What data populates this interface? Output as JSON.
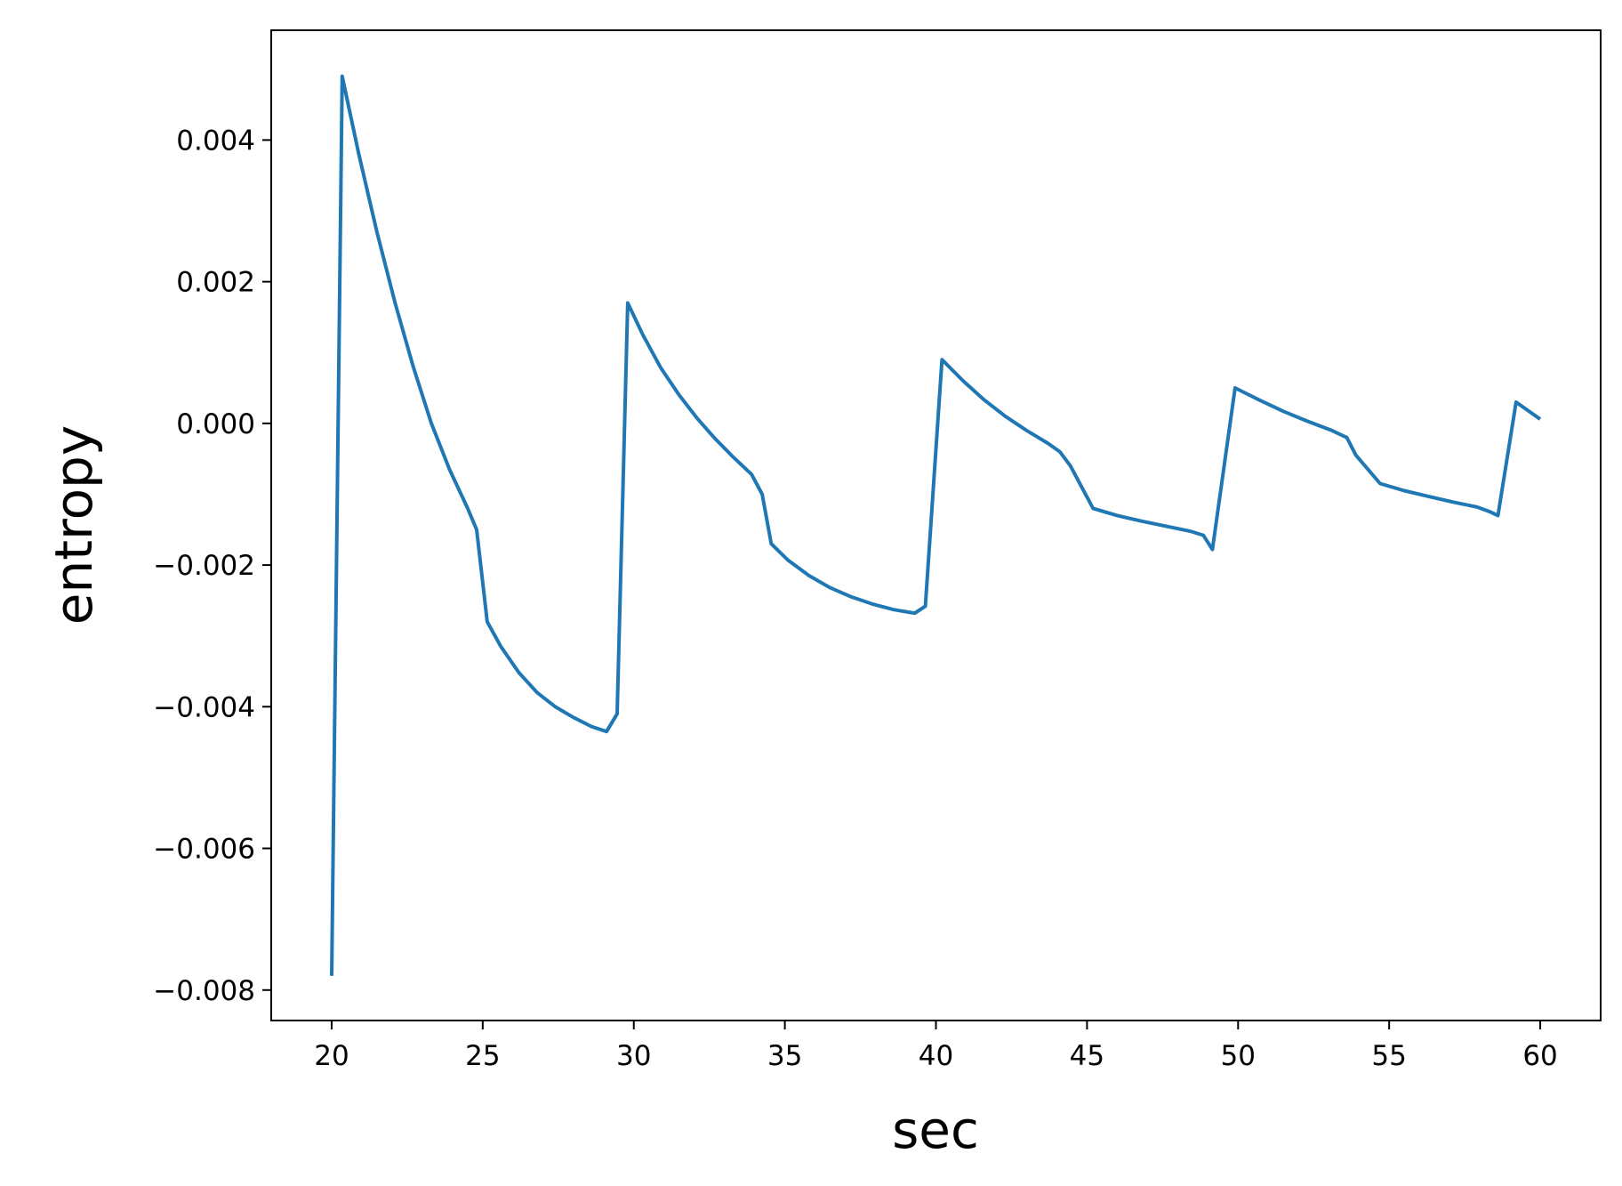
{
  "chart_data": {
    "type": "line",
    "title": "",
    "xlabel": "sec",
    "ylabel": "entropy",
    "xlim": [
      18,
      62
    ],
    "ylim": [
      -0.00843,
      0.00555
    ],
    "grid": false,
    "legend": "none",
    "x_ticks": [
      20,
      25,
      30,
      35,
      40,
      45,
      50,
      55,
      60
    ],
    "x_tick_labels": [
      "20",
      "25",
      "30",
      "35",
      "40",
      "45",
      "50",
      "55",
      "60"
    ],
    "y_ticks": [
      -0.008,
      -0.006,
      -0.004,
      -0.002,
      0.0,
      0.002,
      0.004
    ],
    "y_tick_labels": [
      "−0.008",
      "−0.006",
      "−0.004",
      "−0.002",
      "0.000",
      "0.002",
      "0.004"
    ],
    "line_color": "#1f77b4",
    "series": [
      {
        "x": [
          20.0,
          20.35,
          20.9,
          21.5,
          22.1,
          22.7,
          23.3,
          23.9,
          24.5,
          24.8,
          25.15,
          25.6,
          26.2,
          26.8,
          27.4,
          28.0,
          28.6,
          29.1,
          29.45,
          29.8,
          30.3,
          30.9,
          31.5,
          32.1,
          32.7,
          33.3,
          33.9,
          34.25,
          34.55,
          35.1,
          35.8,
          36.5,
          37.2,
          37.9,
          38.6,
          39.3,
          39.65,
          40.2,
          40.9,
          41.6,
          42.3,
          43.0,
          43.7,
          44.1,
          44.45,
          45.2,
          46.0,
          46.8,
          47.6,
          48.4,
          48.85,
          49.15,
          49.9,
          50.7,
          51.5,
          52.3,
          53.1,
          53.6,
          53.9,
          54.7,
          55.5,
          56.3,
          57.1,
          57.9,
          58.35,
          58.6,
          59.2,
          60.0
        ],
        "y": [
          -0.0078,
          0.0049,
          0.0038,
          0.0027,
          0.0017,
          0.0008,
          0.0,
          -0.00065,
          -0.0012,
          -0.0015,
          -0.0028,
          -0.00315,
          -0.00352,
          -0.0038,
          -0.004,
          -0.00415,
          -0.00428,
          -0.00435,
          -0.0041,
          0.0017,
          0.00125,
          0.00078,
          0.0004,
          7e-05,
          -0.00022,
          -0.00048,
          -0.00072,
          -0.001,
          -0.0017,
          -0.00193,
          -0.00215,
          -0.00232,
          -0.00245,
          -0.00255,
          -0.00263,
          -0.00268,
          -0.00258,
          0.0009,
          0.0006,
          0.00033,
          0.0001,
          -0.0001,
          -0.00028,
          -0.0004,
          -0.0006,
          -0.0012,
          -0.0013,
          -0.00138,
          -0.00145,
          -0.00152,
          -0.00158,
          -0.00178,
          0.0005,
          0.00033,
          0.00017,
          3e-05,
          -0.0001,
          -0.0002,
          -0.00045,
          -0.00085,
          -0.00095,
          -0.00103,
          -0.00111,
          -0.00118,
          -0.00125,
          -0.0013,
          0.0003,
          6e-05
        ]
      }
    ]
  }
}
